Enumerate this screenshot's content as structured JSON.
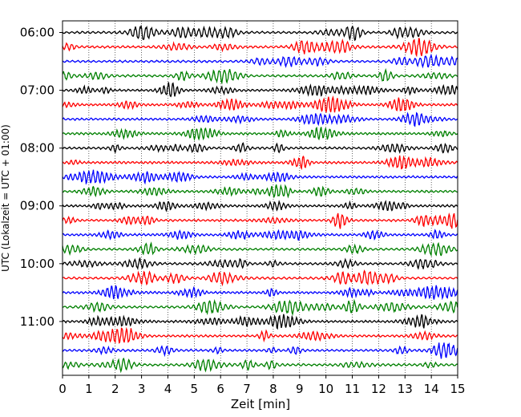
{
  "chart_data": {
    "type": "line",
    "chart_kind": "helicorder",
    "title": "",
    "xlabel": "Zeit  [min]",
    "ylabel": "UTC (Lokalzeit = UTC + 01:00)",
    "xlim": [
      0,
      15
    ],
    "x_ticks": [
      0,
      1,
      2,
      3,
      4,
      5,
      6,
      7,
      8,
      9,
      10,
      11,
      12,
      13,
      14,
      15
    ],
    "x_tick_labels": [
      "0",
      "1",
      "2",
      "3",
      "4",
      "5",
      "6",
      "7",
      "8",
      "9",
      "10",
      "11",
      "12",
      "13",
      "14",
      "15"
    ],
    "y_ticks": [
      "06:00",
      "07:00",
      "08:00",
      "09:00",
      "10:00",
      "11:00"
    ],
    "traces_per_hour": 4,
    "minutes_per_trace": 15,
    "start_time": "06:00",
    "trace_count": 24,
    "trace_colors": [
      "#000000",
      "#ff0000",
      "#0000ff",
      "#008000"
    ],
    "grid": {
      "vertical": true,
      "style": "dotted"
    },
    "legend": null
  }
}
